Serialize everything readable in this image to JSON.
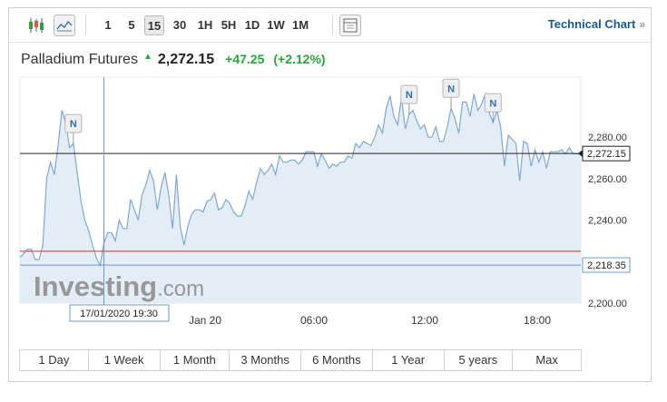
{
  "toolbar": {
    "intervals": [
      {
        "label": "1",
        "active": false
      },
      {
        "label": "5",
        "active": false
      },
      {
        "label": "15",
        "active": true
      },
      {
        "label": "30",
        "active": false
      },
      {
        "label": "1H",
        "active": false
      },
      {
        "label": "5H",
        "active": false
      },
      {
        "label": "1D",
        "active": false
      },
      {
        "label": "1W",
        "active": false
      },
      {
        "label": "1M",
        "active": false
      }
    ],
    "technical_chart_label": "Technical Chart",
    "technical_chart_arrow": "»",
    "icons": [
      "candlestick-chart-icon",
      "line-chart-icon",
      "indicators-icon"
    ]
  },
  "header": {
    "name": "Palladium Futures",
    "up_icon": "▲",
    "price": "2,272.15",
    "change": "+47.25",
    "change_pct": "(+2.12%)"
  },
  "colors": {
    "line": "#7fa7d3",
    "area": "#e4edf6",
    "positive": "#2ba33a",
    "reference_red": "#d9534f",
    "link": "#1a5a8e"
  },
  "chart_data": {
    "type": "area",
    "series": [
      {
        "values": [
          2222,
          2224,
          2226,
          2226,
          2221,
          2221,
          2228,
          2260,
          2268,
          2262,
          2276,
          2293,
          2287,
          2275,
          2277,
          2263,
          2249,
          2240,
          2235,
          2228,
          2222,
          2218,
          2229,
          2234,
          2234,
          2230,
          2240,
          2236,
          2236,
          2250,
          2245,
          2240,
          2252,
          2257,
          2264,
          2259,
          2245,
          2256,
          2263,
          2252,
          2236,
          2262,
          2237,
          2228,
          2237,
          2243,
          2245,
          2245,
          2244,
          2249,
          2250,
          2253,
          2245,
          2246,
          2250,
          2248,
          2244,
          2242,
          2242,
          2247,
          2254,
          2250,
          2258,
          2265,
          2262,
          2264,
          2267,
          2262,
          2271,
          2268,
          2268,
          2269,
          2269,
          2267,
          2269,
          2273,
          2273,
          2273,
          2266,
          2272,
          2269,
          2265,
          2267,
          2266,
          2268,
          2268,
          2271,
          2270,
          2277,
          2275,
          2278,
          2277,
          2276,
          2280,
          2286,
          2282,
          2294,
          2300,
          2290,
          2286,
          2299,
          2284,
          2291,
          2293,
          2288,
          2284,
          2286,
          2280,
          2280,
          2285,
          2278,
          2278,
          2285,
          2294,
          2289,
          2282,
          2297,
          2297,
          2290,
          2301,
          2293,
          2296,
          2301,
          2292,
          2287,
          2293,
          2285,
          2266,
          2281,
          2279,
          2277,
          2259,
          2278,
          2277,
          2266,
          2274,
          2268,
          2273,
          2265,
          2273,
          2273,
          2273,
          2274,
          2272,
          2275,
          2272,
          2272,
          2272
        ]
      }
    ],
    "x_tick_labels": [
      "Jan 20",
      "06:00",
      "12:00",
      "18:00"
    ],
    "y_tick_labels": [
      "2,280.00",
      "2,260.00",
      "2,240.00",
      "2,200.00"
    ],
    "y_ticks": [
      2280,
      2260,
      2240,
      2200
    ],
    "ylim": [
      2200,
      2309
    ],
    "current_price": 2272.15,
    "current_price_label": "2,272.15",
    "crosshair": {
      "price": 2218.35,
      "price_label": "2,218.35",
      "time_label": "17/01/2020 19:30",
      "index": 22
    },
    "previous_close": 2225,
    "news_markers": [
      {
        "label": "N",
        "index": 14
      },
      {
        "label": "N",
        "index": 102
      },
      {
        "label": "N",
        "index": 113
      },
      {
        "label": "N",
        "index": 124
      }
    ],
    "grid": false
  },
  "watermark": {
    "brand": "Investing",
    "suffix": ".com"
  },
  "periods": [
    "1 Day",
    "1 Week",
    "1 Month",
    "3 Months",
    "6 Months",
    "1 Year",
    "5 years",
    "Max"
  ]
}
